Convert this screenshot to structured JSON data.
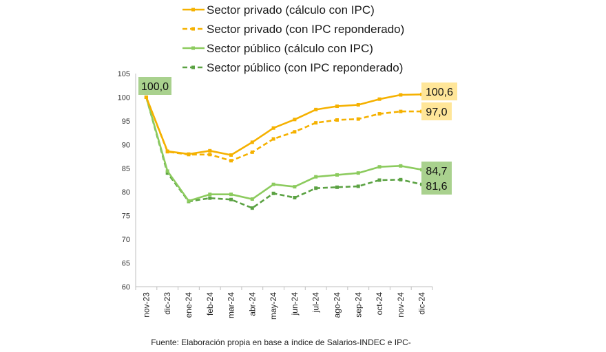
{
  "chart_data": {
    "type": "line",
    "categories": [
      "nov-23",
      "dic-23",
      "ene-24",
      "feb-24",
      "mar-24",
      "abr-24",
      "may-24",
      "jun-24",
      "jul-24",
      "ago-24",
      "sep-24",
      "oct-24",
      "nov-24",
      "dic-24"
    ],
    "ylim": [
      60,
      105
    ],
    "yticks": [
      60,
      65,
      70,
      75,
      80,
      85,
      90,
      95,
      100,
      105
    ],
    "grid": false,
    "legend_position": "top",
    "series": [
      {
        "name": "Sector privado (cálculo con IPC)",
        "color": "#F5B100",
        "dashed": false,
        "values": [
          100.0,
          88.6,
          88.0,
          88.7,
          87.8,
          90.5,
          93.5,
          95.3,
          97.4,
          98.1,
          98.4,
          99.6,
          100.5,
          100.6
        ]
      },
      {
        "name": "Sector privado (con IPC reponderado)",
        "color": "#F5B100",
        "dashed": true,
        "values": [
          100.0,
          88.5,
          87.9,
          87.9,
          86.6,
          88.4,
          91.2,
          92.7,
          94.6,
          95.2,
          95.4,
          96.5,
          97.0,
          97.0
        ]
      },
      {
        "name": "Sector público (cálculo con IPC)",
        "color": "#8CCB5E",
        "dashed": false,
        "values": [
          100.0,
          84.4,
          78.1,
          79.5,
          79.5,
          78.5,
          81.6,
          81.1,
          83.2,
          83.6,
          84.0,
          85.3,
          85.5,
          84.7
        ]
      },
      {
        "name": "Sector público (con IPC reponderado)",
        "color": "#5BA243",
        "dashed": true,
        "values": [
          100.0,
          84.0,
          78.0,
          78.7,
          78.4,
          76.6,
          79.7,
          78.8,
          80.8,
          81.0,
          81.2,
          82.5,
          82.6,
          81.6
        ]
      }
    ],
    "annotations": [
      {
        "text": "100,0",
        "bg": "#A9D18E"
      },
      {
        "text": "100,6",
        "bg": "#FFE699"
      },
      {
        "text": "97,0",
        "bg": "#FFE699"
      },
      {
        "text": "84,7",
        "bg": "#A9D18E"
      },
      {
        "text": "81,6",
        "bg": "#A9D18E"
      }
    ]
  },
  "source_note": "Fuente: Elaboración propia en base a índice de Salarios-INDEC e IPC-"
}
